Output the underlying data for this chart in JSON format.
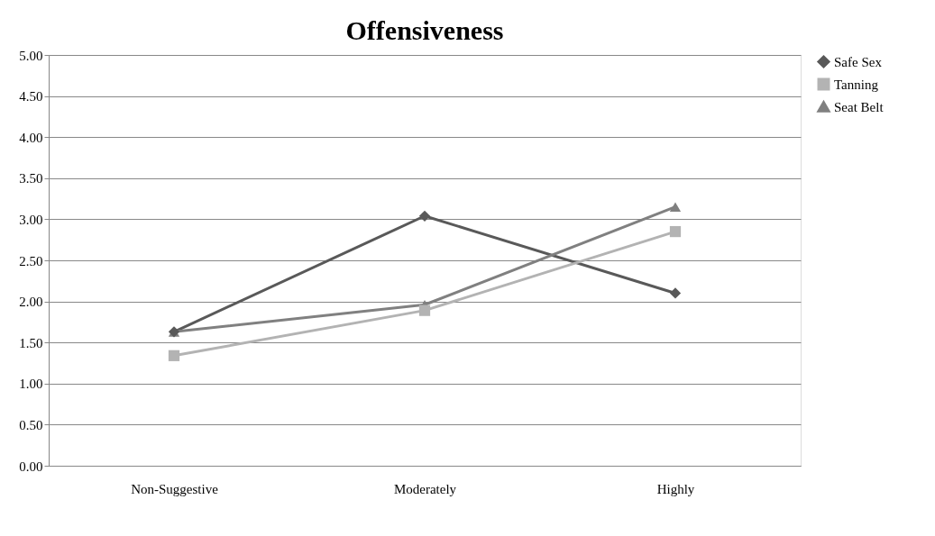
{
  "chart_data": {
    "type": "line",
    "title": "Offensiveness",
    "categories": [
      "Non-Suggestive",
      "Moderately",
      "Highly"
    ],
    "series": [
      {
        "name": "Safe Sex",
        "color": "#595959",
        "marker": "diamond",
        "values": [
          1.63,
          3.04,
          2.1
        ]
      },
      {
        "name": "Tanning",
        "color": "#b3b3b3",
        "marker": "square",
        "values": [
          1.34,
          1.89,
          2.85
        ]
      },
      {
        "name": "Seat Belt",
        "color": "#808080",
        "marker": "triangle",
        "values": [
          1.63,
          1.96,
          3.15
        ]
      }
    ],
    "ylim": [
      0,
      5
    ],
    "yticks": [
      {
        "value": 0,
        "label": "0.00"
      },
      {
        "value": 0.5,
        "label": "0.50"
      },
      {
        "value": 1,
        "label": "1.00"
      },
      {
        "value": 1.5,
        "label": "1.50"
      },
      {
        "value": 2,
        "label": "2.00"
      },
      {
        "value": 2.5,
        "label": "2.50"
      },
      {
        "value": 3,
        "label": "3.00"
      },
      {
        "value": 3.5,
        "label": "3.50"
      },
      {
        "value": 4,
        "label": "4.00"
      },
      {
        "value": 4.5,
        "label": "4.50"
      },
      {
        "value": 5,
        "label": "5.00"
      }
    ],
    "grid": "y",
    "legend": "right"
  }
}
